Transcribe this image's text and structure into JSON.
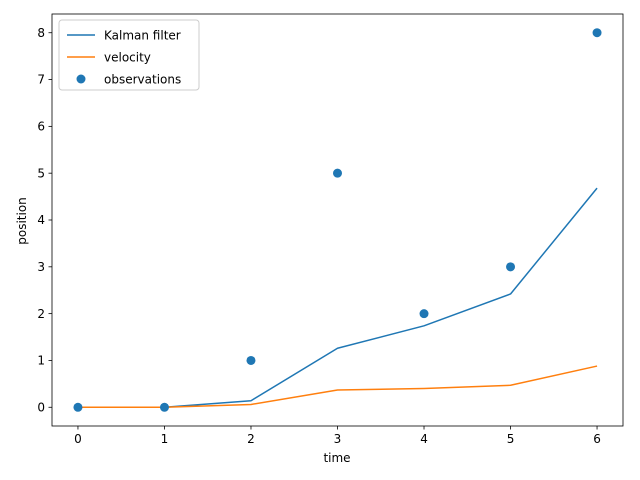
{
  "chart_data": {
    "type": "line",
    "xlabel": "time",
    "ylabel": "position",
    "xlim": [
      -0.3,
      6.3
    ],
    "ylim": [
      -0.4,
      8.4
    ],
    "xticks": [
      0,
      1,
      2,
      3,
      4,
      5,
      6
    ],
    "yticks": [
      0,
      1,
      2,
      3,
      4,
      5,
      6,
      7,
      8
    ],
    "grid": false,
    "legend_position": "top-left",
    "x": [
      0,
      1,
      2,
      3,
      4,
      5,
      6
    ],
    "series": [
      {
        "name": "Kalman filter",
        "kind": "line",
        "color": "#1f77b4",
        "values": [
          0,
          0,
          0.14,
          1.26,
          1.74,
          2.42,
          4.68
        ]
      },
      {
        "name": "velocity",
        "kind": "line",
        "color": "#ff7f0e",
        "values": [
          0,
          0,
          0.06,
          0.37,
          0.4,
          0.47,
          0.88
        ]
      },
      {
        "name": "observations",
        "kind": "scatter",
        "color": "#1f77b4",
        "values": [
          0,
          0,
          1,
          5,
          2,
          3,
          8
        ]
      }
    ]
  }
}
